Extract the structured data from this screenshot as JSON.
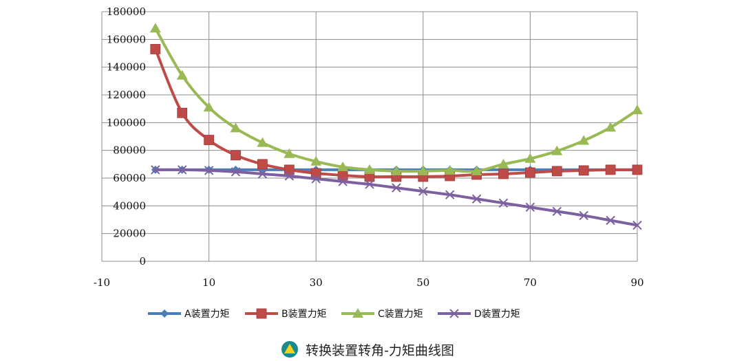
{
  "caption": {
    "text": "转换装置转角-力矩曲线图",
    "icon": "yellow-triangle-in-teal-circle-icon"
  },
  "chart_data": {
    "type": "line",
    "title": "",
    "xlabel": "",
    "ylabel": "",
    "xlim": [
      -10,
      90
    ],
    "ylim": [
      0,
      180000
    ],
    "xticks": [
      "-10",
      "10",
      "30",
      "50",
      "70",
      "90"
    ],
    "yticks": [
      "0",
      "20000",
      "40000",
      "60000",
      "80000",
      "100000",
      "120000",
      "140000",
      "160000",
      "180000"
    ],
    "grid": "vertical and horizontal",
    "legend_position": "bottom",
    "x": [
      0,
      5,
      10,
      15,
      20,
      25,
      30,
      35,
      40,
      45,
      50,
      55,
      60,
      65,
      70,
      75,
      80,
      85,
      90
    ],
    "series": [
      {
        "name": "A装置力矩",
        "color": "#4a7ebb",
        "marker": "diamond",
        "values": [
          66000,
          66000,
          66000,
          66000,
          66000,
          66000,
          66000,
          66000,
          66000,
          66000,
          66000,
          66000,
          66000,
          66000,
          66000,
          66000,
          66000,
          66000,
          66000
        ]
      },
      {
        "name": "B装置力矩",
        "color": "#be4b48",
        "marker": "square",
        "values": [
          153000,
          107000,
          87500,
          76500,
          70000,
          66000,
          63500,
          62000,
          61000,
          61000,
          61000,
          61500,
          62500,
          63000,
          64000,
          65000,
          65500,
          66000,
          66000
        ]
      },
      {
        "name": "C装置力矩",
        "color": "#98b954",
        "marker": "triangle",
        "values": [
          168000,
          134000,
          111000,
          96000,
          85500,
          77500,
          72000,
          68000,
          66000,
          65000,
          65000,
          65500,
          65000,
          70000,
          74000,
          79500,
          87000,
          96500,
          109000
        ]
      },
      {
        "name": "D装置力矩",
        "color": "#7d60a0",
        "marker": "cross",
        "values": [
          66000,
          66000,
          65500,
          64500,
          63000,
          61500,
          59500,
          57500,
          55500,
          53000,
          50500,
          48000,
          45000,
          42000,
          39000,
          36000,
          33000,
          29500,
          26000
        ]
      }
    ]
  }
}
